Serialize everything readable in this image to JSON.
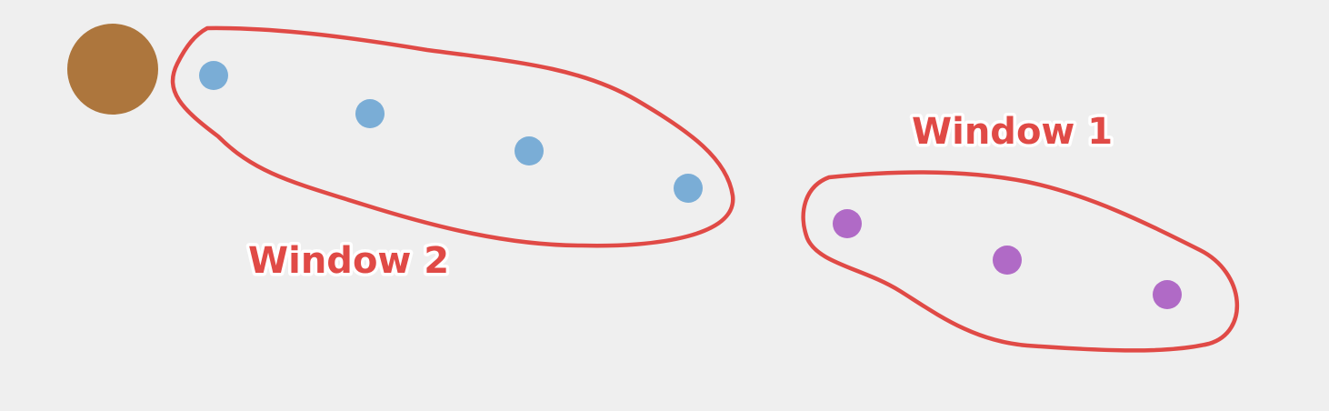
{
  "colors": {
    "background": "#efefef",
    "outline": "#e04a46",
    "label": "#e04a46",
    "large_circle": "#ad763d",
    "window2_points": "#7aadd6",
    "window1_points": "#b06ac6"
  },
  "labels": {
    "window1": "Window 1",
    "window2": "Window 2"
  },
  "groups": {
    "window2": {
      "point_count": 4
    },
    "window1": {
      "point_count": 3
    }
  }
}
